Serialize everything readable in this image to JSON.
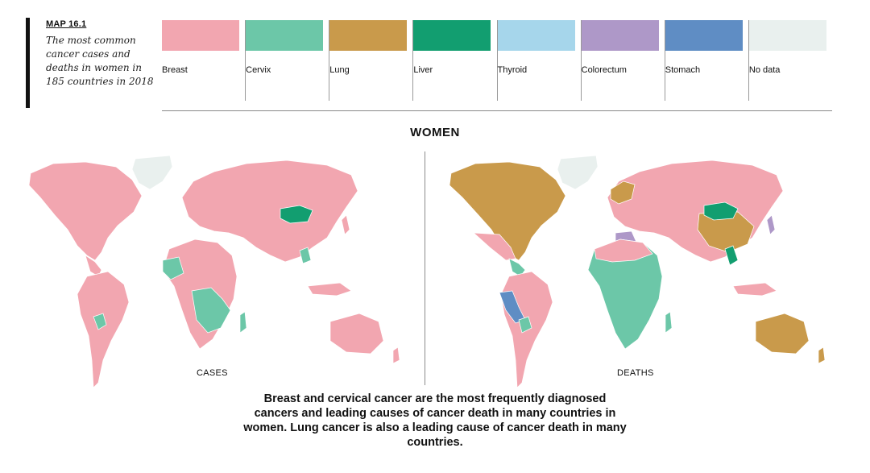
{
  "header": {
    "map_number": "MAP 16.1",
    "subtitle": "The most common cancer cases and deaths in women in 185 countries in 2018"
  },
  "legend": [
    {
      "label": "Breast",
      "color": "#F2A6B0"
    },
    {
      "label": "Cervix",
      "color": "#6CC7A8"
    },
    {
      "label": "Lung",
      "color": "#C99A4B"
    },
    {
      "label": "Liver",
      "color": "#129E70"
    },
    {
      "label": "Thyroid",
      "color": "#A6D6EB"
    },
    {
      "label": "Colorectum",
      "color": "#AE98C8"
    },
    {
      "label": "Stomach",
      "color": "#5F8DC4"
    },
    {
      "label": "No data",
      "color": "#E9F0EE"
    }
  ],
  "section_title": "WOMEN",
  "maps": {
    "cases_label": "CASES",
    "deaths_label": "DEATHS"
  },
  "caption": "Breast and cervical cancer are the most frequently diagnosed cancers and leading causes of cancer death in many countries in women. Lung cancer is also a leading cause of cancer death in many countries."
}
